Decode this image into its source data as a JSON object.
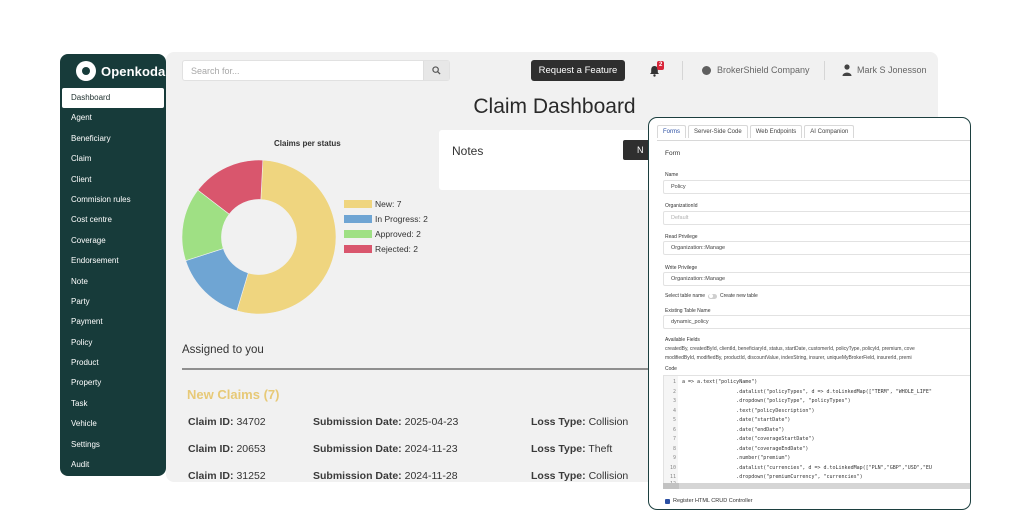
{
  "sidebar": {
    "brand": "Openkoda",
    "items": [
      {
        "label": "Dashboard",
        "active": true
      },
      {
        "label": "Agent"
      },
      {
        "label": "Beneficiary"
      },
      {
        "label": "Claim"
      },
      {
        "label": "Client"
      },
      {
        "label": "Commision rules"
      },
      {
        "label": "Cost centre"
      },
      {
        "label": "Coverage"
      },
      {
        "label": "Endorsement"
      },
      {
        "label": "Note"
      },
      {
        "label": "Party"
      },
      {
        "label": "Payment"
      },
      {
        "label": "Policy"
      },
      {
        "label": "Product"
      },
      {
        "label": "Property"
      },
      {
        "label": "Task"
      },
      {
        "label": "Vehicle"
      },
      {
        "label": "Settings"
      },
      {
        "label": "Audit"
      }
    ]
  },
  "header": {
    "search_placeholder": "Search for...",
    "feature_button": "Request a Feature",
    "notification_count": "2",
    "company": "BrokerShield Company",
    "user": "Mark S Jonesson"
  },
  "main": {
    "title": "Claim Dashboard",
    "notes": {
      "title": "Notes",
      "button_label": "N"
    },
    "assigned": {
      "title": "Assigned to you",
      "section_title": "New Claims (7)",
      "claim_id_key": "Claim ID:",
      "submission_key": "Submission Date:",
      "loss_key": "Loss Type:",
      "claims": [
        {
          "id": "34702",
          "date": "2025-04-23",
          "loss": "Collision"
        },
        {
          "id": "20653",
          "date": "2024-11-23",
          "loss": "Theft"
        },
        {
          "id": "31252",
          "date": "2024-11-28",
          "loss": "Collision"
        }
      ]
    }
  },
  "chart_data": {
    "type": "pie",
    "title": "Claims per status",
    "categories": [
      "New",
      "In Progress",
      "Approved",
      "Rejected"
    ],
    "values": [
      7,
      2,
      2,
      2
    ],
    "legend_labels": [
      "New: 7",
      "In Progress: 2",
      "Approved: 2",
      "Rejected: 2"
    ],
    "colors": [
      "#efd57f",
      "#6fa5d3",
      "#9fe084",
      "#d9566d"
    ],
    "donut": true,
    "legend_position": "right"
  },
  "editor": {
    "tabs": [
      {
        "label": "Forms",
        "active": true
      },
      {
        "label": "Server-Side Code"
      },
      {
        "label": "Web Endpoints"
      },
      {
        "label": "AI Companion"
      }
    ],
    "heading": "Form",
    "name_label": "Name",
    "name_value": "Policy",
    "org_label": "OrganizationId",
    "org_placeholder": "Default",
    "read_label": "Read Privilege",
    "read_value": "Organization::Manage",
    "write_label": "Write Privilege",
    "write_value": "Organization::Manage",
    "select_table_label": "Select table name",
    "create_table_label": "Create new table",
    "existing_label": "Existing Table Name",
    "existing_value": "dynamic_policy",
    "available_label": "Available Fields",
    "available_line1": "createdBy, createdById, clientId, beneficiaryId, status, startDate, customerId, policyType, policyId, premium, cove",
    "available_line2": "modifiedById, modifiedBy, productId, discountValue, indexString, insurer, uniqueMyBrokerField, insurerId, premi",
    "code_label": "Code",
    "code_lines": [
      {
        "n": "1",
        "t": "a => a.text(\"policyName\")"
      },
      {
        "n": "2",
        "t": "                  .datalist(\"policyTypes\", d => d.toLinkedMap([\"TERM\", \"WHOLE_LIFE\""
      },
      {
        "n": "3",
        "t": "                  .dropdown(\"policyType\", \"policyTypes\")"
      },
      {
        "n": "4",
        "t": "                  .text(\"policyDescription\")"
      },
      {
        "n": "5",
        "t": "                  .date(\"startDate\")"
      },
      {
        "n": "6",
        "t": "                  .date(\"endDate\")"
      },
      {
        "n": "7",
        "t": "                  .date(\"coverageStartDate\")"
      },
      {
        "n": "8",
        "t": "                  .date(\"coverageEndDate\")"
      },
      {
        "n": "9",
        "t": "                  .number(\"premium\")"
      },
      {
        "n": "10",
        "t": "                  .datalist(\"currencies\", d => d.toLinkedMap([\"PLN\",\"GBP\",\"USD\",\"EU"
      },
      {
        "n": "11",
        "t": "                  .dropdown(\"premiumCurrency\", \"currencies\")"
      },
      {
        "n": "12",
        "t": ""
      }
    ],
    "register_label": "Register HTML CRUD Controller"
  }
}
